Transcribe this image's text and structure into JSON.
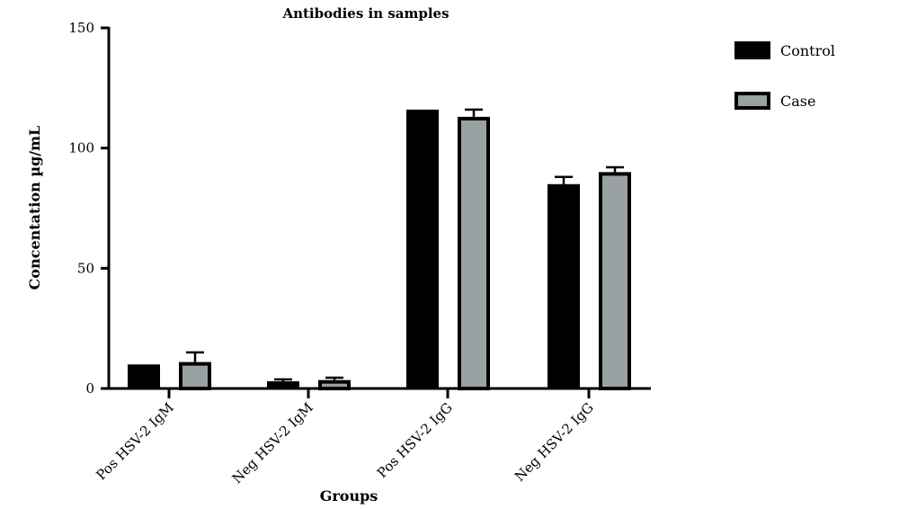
{
  "chart_data": {
    "type": "bar",
    "title": "Antibodies in samples",
    "xlabel": "Groups",
    "ylabel": "Concentation µg/mL",
    "categories": [
      "Pos HSV-2 IgM",
      "Neg HSV-2 IgM",
      "Pos HSV-2 IgG",
      "Neg HSV-2 IgG"
    ],
    "ylim": [
      0,
      150
    ],
    "yticks": [
      0,
      50,
      100,
      150
    ],
    "legend_position": "top-right",
    "grid": false,
    "series": [
      {
        "name": "Control",
        "color": "#000000",
        "values": [
          10,
          3,
          116,
          85
        ],
        "errors": [
          0,
          0.8,
          0,
          3
        ]
      },
      {
        "name": "Case",
        "color": "#9aa1a3",
        "values": [
          11,
          3.5,
          113,
          90
        ],
        "errors": [
          4,
          1,
          3,
          2
        ]
      }
    ]
  }
}
